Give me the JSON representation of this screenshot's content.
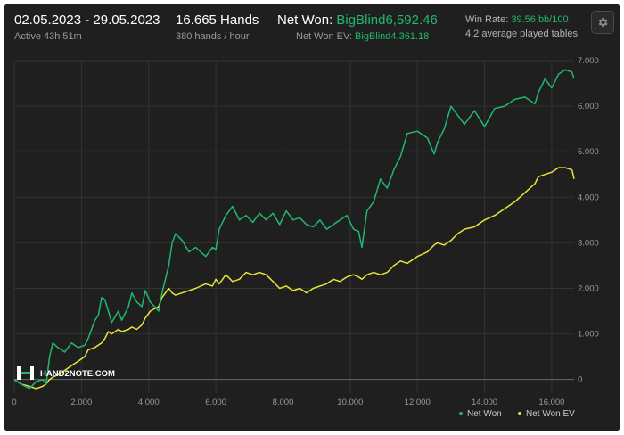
{
  "header": {
    "date_range": "02.05.2023 - 29.05.2023",
    "active_time": "Active 43h 51m",
    "hands": "16.665 Hands",
    "hands_rate": "380 hands / hour",
    "net_won_label": "Net Won:",
    "net_won_value": "BigBlind6,592.46",
    "net_won_ev_label": "Net Won  EV:",
    "net_won_ev_value": "BigBlind4,361.18",
    "win_rate_label": "Win Rate:",
    "win_rate_value": "39.56 bb/100",
    "tables_text": "4.2 average played tables"
  },
  "settings_icon": "gear-icon",
  "watermark": "HAND2NOTE.COM",
  "colors": {
    "net_won": "#21b86e",
    "net_won_ev": "#e5e53a",
    "background": "#1f1f1f",
    "accent_green": "#21b86e"
  },
  "legend": {
    "net_won": "Net Won",
    "net_won_ev": "Net Won  EV",
    "placement": "bottom-right"
  },
  "chart_data": {
    "type": "line",
    "title": "",
    "xlabel": "",
    "ylabel": "",
    "grid": true,
    "xlim": [
      0,
      16665
    ],
    "ylim": [
      -300,
      7000
    ],
    "x_ticks": [
      "0",
      "2.000",
      "4.000",
      "6.000",
      "8.000",
      "10.000",
      "12.000",
      "14.000",
      "16.000"
    ],
    "y_ticks": [
      "0",
      "1.000",
      "2.000",
      "3.000",
      "4.000",
      "5.000",
      "6.000",
      "7.000"
    ],
    "x": [
      0,
      200,
      450,
      650,
      850,
      950,
      1000,
      1050,
      1150,
      1300,
      1500,
      1700,
      1900,
      2100,
      2200,
      2400,
      2500,
      2600,
      2700,
      2800,
      2900,
      3100,
      3200,
      3400,
      3500,
      3650,
      3800,
      3900,
      4050,
      4300,
      4400,
      4600,
      4700,
      4800,
      5000,
      5200,
      5400,
      5700,
      5900,
      6000,
      6100,
      6300,
      6500,
      6700,
      6900,
      7100,
      7300,
      7500,
      7700,
      7900,
      8100,
      8300,
      8500,
      8700,
      8900,
      9100,
      9300,
      9500,
      9700,
      9900,
      10100,
      10250,
      10350,
      10500,
      10700,
      10900,
      11100,
      11300,
      11500,
      11700,
      12000,
      12300,
      12500,
      12600,
      12800,
      13000,
      13200,
      13400,
      13700,
      14000,
      14300,
      14600,
      14900,
      15200,
      15500,
      15600,
      15800,
      16000,
      16200,
      16400,
      16600,
      16665
    ],
    "series": [
      {
        "name": "Net Won",
        "color": "#21b86e",
        "values": [
          0,
          -100,
          -200,
          -50,
          0,
          -100,
          200,
          500,
          800,
          700,
          600,
          800,
          700,
          750,
          900,
          1300,
          1400,
          1800,
          1750,
          1500,
          1250,
          1500,
          1300,
          1600,
          1900,
          1700,
          1600,
          1950,
          1700,
          1500,
          1900,
          2500,
          3000,
          3200,
          3050,
          2800,
          2900,
          2700,
          2900,
          2850,
          3300,
          3600,
          3800,
          3500,
          3600,
          3450,
          3650,
          3500,
          3650,
          3400,
          3700,
          3500,
          3550,
          3400,
          3350,
          3500,
          3300,
          3400,
          3500,
          3600,
          3300,
          3250,
          2900,
          3700,
          3900,
          4400,
          4200,
          4600,
          4900,
          5400,
          5450,
          5300,
          4950,
          5200,
          5500,
          6000,
          5800,
          5600,
          5900,
          5550,
          5950,
          6000,
          6150,
          6200,
          6050,
          6300,
          6600,
          6400,
          6700,
          6800,
          6750,
          6600
        ]
      },
      {
        "name": "Net Won  EV",
        "color": "#e5e53a",
        "values": [
          0,
          -100,
          -150,
          -200,
          -150,
          -100,
          -50,
          0,
          50,
          100,
          200,
          300,
          400,
          500,
          650,
          700,
          750,
          800,
          900,
          1050,
          1000,
          1100,
          1050,
          1100,
          1150,
          1100,
          1200,
          1350,
          1500,
          1600,
          1800,
          2000,
          1900,
          1850,
          1900,
          1950,
          2000,
          2100,
          2050,
          2200,
          2100,
          2300,
          2150,
          2200,
          2350,
          2300,
          2350,
          2300,
          2150,
          2000,
          2050,
          1950,
          2000,
          1900,
          2000,
          2050,
          2100,
          2200,
          2150,
          2250,
          2300,
          2250,
          2200,
          2300,
          2350,
          2300,
          2350,
          2500,
          2600,
          2550,
          2700,
          2800,
          2950,
          3000,
          2950,
          3050,
          3200,
          3300,
          3350,
          3500,
          3600,
          3750,
          3900,
          4100,
          4300,
          4450,
          4500,
          4550,
          4650,
          4650,
          4600,
          4400
        ]
      }
    ]
  }
}
